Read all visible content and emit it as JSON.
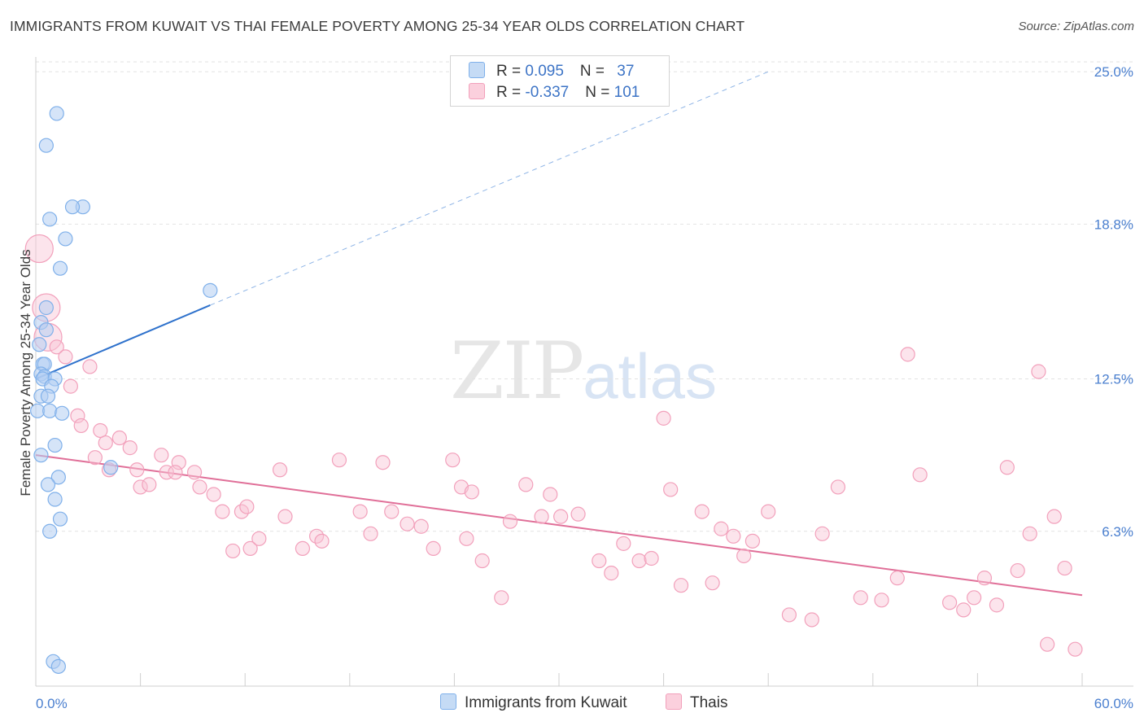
{
  "title": "IMMIGRANTS FROM KUWAIT VS THAI FEMALE POVERTY AMONG 25-34 YEAR OLDS CORRELATION CHART",
  "source": "Source: ZipAtlas.com",
  "watermark": {
    "zip": "ZIP",
    "atlas": "atlas"
  },
  "colors": {
    "blue": "#7fb0ea",
    "blue_line": "#2f72cc",
    "pink": "#f2a0bb",
    "pink_line": "#e06f98",
    "tick": "#4a7fcf"
  },
  "legend": {
    "rows": [
      {
        "r_label": "R = ",
        "r_value": "0.095",
        "n_label": "N = ",
        "n_value": "37"
      },
      {
        "r_label": "R = ",
        "r_value": "-0.337",
        "n_label": "N = ",
        "n_value": "101"
      }
    ]
  },
  "chart_data": {
    "type": "scatter",
    "title": "IMMIGRANTS FROM KUWAIT VS THAI FEMALE POVERTY AMONG 25-34 YEAR OLDS CORRELATION CHART",
    "xlabel": "",
    "ylabel": "Female Poverty Among 25-34 Year Olds",
    "xlim": [
      0,
      60
    ],
    "ylim": [
      0,
      25.6
    ],
    "x_tick_labels": [
      "0.0%",
      "60.0%"
    ],
    "y_ticks": [
      6.3,
      12.5,
      18.8,
      25.0
    ],
    "y_tick_labels": [
      "6.3%",
      "12.5%",
      "18.8%",
      "25.0%"
    ],
    "grid": true,
    "legend_position": "top-center",
    "series": [
      {
        "name": "Immigrants from Kuwait",
        "color": "#7fb0ea",
        "trend": {
          "x0": 0,
          "y0": 12.5,
          "x1": 10,
          "y1": 15.5,
          "dashed_to_x": 42,
          "dashed_to_y": 25.0
        },
        "points": [
          {
            "x": 1.2,
            "y": 23.3
          },
          {
            "x": 0.6,
            "y": 22.0
          },
          {
            "x": 2.7,
            "y": 19.5
          },
          {
            "x": 2.1,
            "y": 19.5
          },
          {
            "x": 0.8,
            "y": 19.0
          },
          {
            "x": 1.7,
            "y": 18.2
          },
          {
            "x": 1.4,
            "y": 17.0
          },
          {
            "x": 10.0,
            "y": 16.1
          },
          {
            "x": 0.6,
            "y": 15.4
          },
          {
            "x": 0.3,
            "y": 14.8
          },
          {
            "x": 0.6,
            "y": 14.5
          },
          {
            "x": 0.2,
            "y": 13.9
          },
          {
            "x": 0.4,
            "y": 13.1
          },
          {
            "x": 0.5,
            "y": 13.1
          },
          {
            "x": 0.3,
            "y": 12.7
          },
          {
            "x": 0.5,
            "y": 12.6
          },
          {
            "x": 0.4,
            "y": 12.5
          },
          {
            "x": 1.1,
            "y": 12.5
          },
          {
            "x": 0.9,
            "y": 12.2
          },
          {
            "x": 0.3,
            "y": 11.8
          },
          {
            "x": 0.7,
            "y": 11.8
          },
          {
            "x": 0.1,
            "y": 11.2
          },
          {
            "x": 0.8,
            "y": 11.2
          },
          {
            "x": 1.5,
            "y": 11.1
          },
          {
            "x": 1.1,
            "y": 9.8
          },
          {
            "x": 0.3,
            "y": 9.4
          },
          {
            "x": 4.3,
            "y": 8.9
          },
          {
            "x": 1.3,
            "y": 8.5
          },
          {
            "x": 0.7,
            "y": 8.2
          },
          {
            "x": 1.1,
            "y": 7.6
          },
          {
            "x": 1.4,
            "y": 6.8
          },
          {
            "x": 0.8,
            "y": 6.3
          },
          {
            "x": 1.0,
            "y": 1.0
          },
          {
            "x": 1.3,
            "y": 0.8
          }
        ]
      },
      {
        "name": "Thais",
        "color": "#f2a0bb",
        "trend": {
          "x0": 0,
          "y0": 9.4,
          "x1": 60,
          "y1": 3.7
        },
        "points": [
          {
            "x": 0.2,
            "y": 17.8,
            "big": true
          },
          {
            "x": 0.6,
            "y": 15.4,
            "big": true
          },
          {
            "x": 0.7,
            "y": 14.2,
            "big": true
          },
          {
            "x": 1.2,
            "y": 13.8
          },
          {
            "x": 1.7,
            "y": 13.4
          },
          {
            "x": 3.1,
            "y": 13.0
          },
          {
            "x": 2.0,
            "y": 12.2
          },
          {
            "x": 2.4,
            "y": 11.0
          },
          {
            "x": 2.6,
            "y": 10.6
          },
          {
            "x": 3.7,
            "y": 10.4
          },
          {
            "x": 4.0,
            "y": 9.9
          },
          {
            "x": 4.8,
            "y": 10.1
          },
          {
            "x": 5.4,
            "y": 9.7
          },
          {
            "x": 3.4,
            "y": 9.3
          },
          {
            "x": 4.2,
            "y": 8.8
          },
          {
            "x": 5.8,
            "y": 8.8
          },
          {
            "x": 6.0,
            "y": 8.1
          },
          {
            "x": 6.5,
            "y": 8.2
          },
          {
            "x": 7.2,
            "y": 9.4
          },
          {
            "x": 7.5,
            "y": 8.7
          },
          {
            "x": 8.2,
            "y": 9.1
          },
          {
            "x": 8.0,
            "y": 8.7
          },
          {
            "x": 9.1,
            "y": 8.7
          },
          {
            "x": 9.4,
            "y": 8.1
          },
          {
            "x": 10.2,
            "y": 7.8
          },
          {
            "x": 10.7,
            "y": 7.1
          },
          {
            "x": 11.3,
            "y": 5.5
          },
          {
            "x": 11.8,
            "y": 7.1
          },
          {
            "x": 12.1,
            "y": 7.3
          },
          {
            "x": 12.3,
            "y": 5.6
          },
          {
            "x": 12.8,
            "y": 6.0
          },
          {
            "x": 14.0,
            "y": 8.8
          },
          {
            "x": 14.3,
            "y": 6.9
          },
          {
            "x": 15.3,
            "y": 5.6
          },
          {
            "x": 16.1,
            "y": 6.1
          },
          {
            "x": 16.4,
            "y": 5.9
          },
          {
            "x": 17.4,
            "y": 9.2
          },
          {
            "x": 18.6,
            "y": 7.1
          },
          {
            "x": 19.2,
            "y": 6.2
          },
          {
            "x": 19.9,
            "y": 9.1
          },
          {
            "x": 20.4,
            "y": 7.1
          },
          {
            "x": 21.3,
            "y": 6.6
          },
          {
            "x": 22.1,
            "y": 6.5
          },
          {
            "x": 22.8,
            "y": 5.6
          },
          {
            "x": 23.9,
            "y": 9.2
          },
          {
            "x": 24.4,
            "y": 8.1
          },
          {
            "x": 24.7,
            "y": 6.0
          },
          {
            "x": 25.0,
            "y": 7.9
          },
          {
            "x": 25.6,
            "y": 5.1
          },
          {
            "x": 26.7,
            "y": 3.6
          },
          {
            "x": 27.2,
            "y": 6.7
          },
          {
            "x": 28.1,
            "y": 8.2
          },
          {
            "x": 29.0,
            "y": 6.9
          },
          {
            "x": 29.5,
            "y": 7.8
          },
          {
            "x": 30.1,
            "y": 6.9
          },
          {
            "x": 31.1,
            "y": 7.0
          },
          {
            "x": 32.3,
            "y": 5.1
          },
          {
            "x": 33.0,
            "y": 4.6
          },
          {
            "x": 33.7,
            "y": 5.8
          },
          {
            "x": 34.6,
            "y": 5.1
          },
          {
            "x": 35.3,
            "y": 5.2
          },
          {
            "x": 36.0,
            "y": 10.9
          },
          {
            "x": 36.4,
            "y": 8.0
          },
          {
            "x": 37.0,
            "y": 4.1
          },
          {
            "x": 38.2,
            "y": 7.1
          },
          {
            "x": 38.8,
            "y": 4.2
          },
          {
            "x": 39.3,
            "y": 6.4
          },
          {
            "x": 40.0,
            "y": 6.1
          },
          {
            "x": 40.6,
            "y": 5.3
          },
          {
            "x": 41.1,
            "y": 5.9
          },
          {
            "x": 42.0,
            "y": 7.1
          },
          {
            "x": 43.2,
            "y": 2.9
          },
          {
            "x": 44.5,
            "y": 2.7
          },
          {
            "x": 45.1,
            "y": 6.2
          },
          {
            "x": 46.0,
            "y": 8.1
          },
          {
            "x": 47.3,
            "y": 3.6
          },
          {
            "x": 48.5,
            "y": 3.5
          },
          {
            "x": 49.4,
            "y": 4.4
          },
          {
            "x": 50.0,
            "y": 13.5
          },
          {
            "x": 50.7,
            "y": 8.6
          },
          {
            "x": 52.4,
            "y": 3.4
          },
          {
            "x": 53.2,
            "y": 3.1
          },
          {
            "x": 53.8,
            "y": 3.6
          },
          {
            "x": 54.4,
            "y": 4.4
          },
          {
            "x": 55.1,
            "y": 3.3
          },
          {
            "x": 55.7,
            "y": 8.9
          },
          {
            "x": 56.3,
            "y": 4.7
          },
          {
            "x": 57.0,
            "y": 6.2
          },
          {
            "x": 57.5,
            "y": 12.8
          },
          {
            "x": 58.0,
            "y": 1.7
          },
          {
            "x": 58.4,
            "y": 6.9
          },
          {
            "x": 59.0,
            "y": 4.8
          },
          {
            "x": 59.6,
            "y": 1.5
          }
        ]
      }
    ]
  }
}
